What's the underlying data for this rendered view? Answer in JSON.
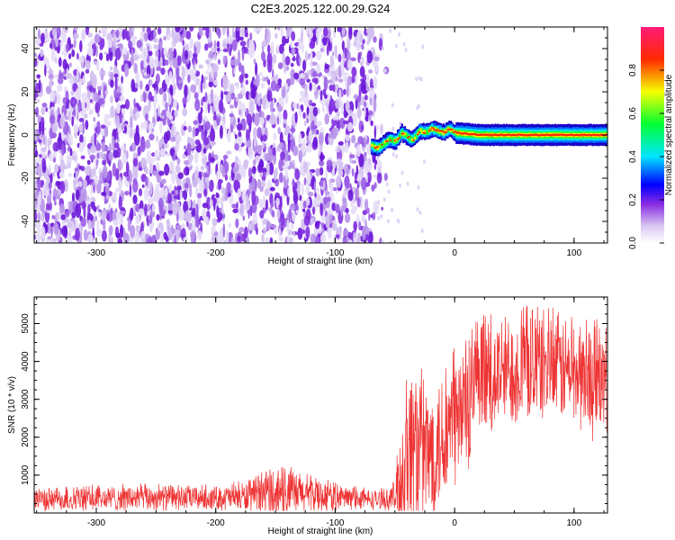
{
  "title": "C2E3.2025.122.00.29.G24",
  "top_panel": {
    "xlabel": "Height of straight line (km)",
    "ylabel": "Frequency (Hz)",
    "colorbar_label": "Normalized spectral amplitude",
    "colorbar_ticks": [
      "0.0",
      "0.2",
      "0.4",
      "0.6",
      "0.8"
    ],
    "xticks": [
      "-300",
      "-200",
      "-100",
      "0",
      "100"
    ],
    "yticks": [
      "40",
      "20",
      "0",
      "-20",
      "-40"
    ]
  },
  "bottom_panel": {
    "xlabel": "Height of straight line (km)",
    "ylabel": "SNR (10 * v/v)",
    "xticks": [
      "-300",
      "-200",
      "-100",
      "0",
      "100"
    ],
    "yticks": [
      "1000",
      "2000",
      "3000",
      "4000",
      "5000"
    ]
  },
  "chart_data": [
    {
      "type": "heatmap",
      "title": "C2E3.2025.122.00.29.G24",
      "xlabel": "Height of straight line (km)",
      "ylabel": "Frequency (Hz)",
      "xlim": [
        -352,
        128
      ],
      "ylim": [
        -50,
        50
      ],
      "colorbar": {
        "label": "Normalized spectral amplitude",
        "range": [
          0,
          1
        ]
      },
      "regions": [
        {
          "x_range": [
            -352,
            -65
          ],
          "description": "noisy broadband purple speckle, amplitude ~0.1-0.2"
        },
        {
          "x_range": [
            -70,
            128
          ],
          "center_freq_hz": 0,
          "peak_amplitude": 0.95,
          "trace_width_hz": 6
        }
      ],
      "trace": {
        "x": [
          -70,
          -65,
          -60,
          -55,
          -50,
          -45,
          -40,
          -35,
          -30,
          -25,
          -20,
          -15,
          -10,
          -5,
          0,
          20,
          60,
          128
        ],
        "y": [
          -5,
          -6,
          -4,
          -2,
          -3,
          1,
          -1,
          -2,
          2,
          1,
          3,
          2,
          1,
          3,
          1,
          0,
          0,
          0
        ]
      }
    },
    {
      "type": "line",
      "xlabel": "Height of straight line (km)",
      "ylabel": "SNR (10 * v/v)",
      "xlim": [
        -352,
        128
      ],
      "ylim": [
        0,
        5700
      ],
      "color": "#ee3333",
      "x": [
        -352,
        -300,
        -250,
        -200,
        -170,
        -160,
        -150,
        -130,
        -110,
        -90,
        -70,
        -55,
        -50,
        -45,
        -40,
        -35,
        -30,
        -25,
        -20,
        -10,
        0,
        10,
        20,
        40,
        60,
        80,
        100,
        115,
        128
      ],
      "y_mean": [
        350,
        380,
        400,
        400,
        420,
        500,
        550,
        500,
        450,
        400,
        350,
        350,
        450,
        900,
        1500,
        1800,
        1700,
        1500,
        1600,
        2000,
        2400,
        2800,
        3300,
        3700,
        3900,
        3900,
        3700,
        3500,
        3400
      ],
      "y_max": [
        700,
        750,
        800,
        750,
        900,
        1150,
        1350,
        1150,
        950,
        750,
        650,
        650,
        1000,
        2600,
        3900,
        4800,
        4300,
        3600,
        3700,
        4000,
        4500,
        4900,
        5200,
        5400,
        5600,
        5500,
        5300,
        5200,
        5000
      ]
    }
  ]
}
